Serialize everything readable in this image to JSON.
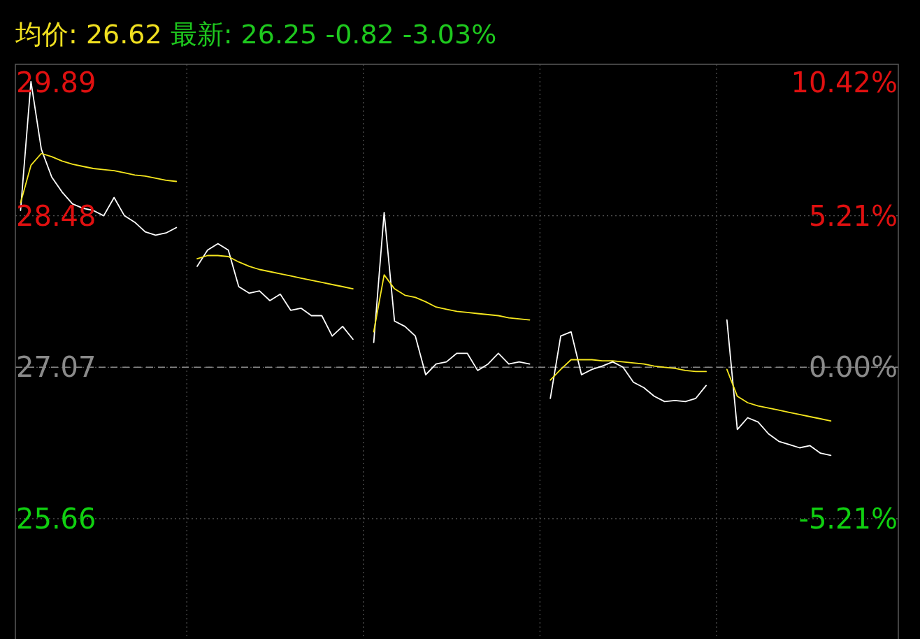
{
  "chart_data": {
    "type": "line",
    "title": "均价: 26.62",
    "subtitle": "最新: 26.25 -0.82 -3.03%",
    "categories": [
      null,
      null,
      null,
      null,
      null,
      null,
      null,
      null,
      null,
      null,
      null,
      null,
      null,
      null,
      null,
      null,
      null,
      null,
      null,
      null,
      null,
      null,
      null,
      null,
      null,
      null,
      null,
      null,
      null,
      null,
      null,
      null,
      null,
      null,
      null,
      null,
      null,
      null,
      null,
      null,
      null,
      null,
      null,
      null,
      null,
      null,
      null,
      null,
      null,
      null,
      null,
      null,
      null,
      null,
      null,
      null,
      null,
      null,
      null,
      null,
      null,
      null,
      null,
      null,
      null,
      null,
      null,
      null,
      null,
      null,
      null,
      null,
      null,
      null,
      null,
      null,
      null,
      null,
      null,
      null,
      null,
      null,
      null,
      null,
      null
    ],
    "ylim": [
      24.54,
      29.89
    ],
    "yticks": [
      29.89,
      28.48,
      27.07,
      25.66
    ],
    "y2lim": [
      -9.35,
      10.42
    ],
    "y2ticks": [
      {
        "value": 10.42,
        "label": "10.42%"
      },
      {
        "value": 5.21,
        "label": "5.21%"
      },
      {
        "value": 0,
        "label": "0.00%"
      },
      {
        "value": -5.21,
        "label": "-5.21%"
      }
    ],
    "grid": true,
    "ref_lines": [
      {
        "axis": "y",
        "value": 27.07,
        "color": "#8a8a8a",
        "line_style": "dashed"
      }
    ],
    "series": [
      {
        "color": "#ffffff",
        "values": [
          28.53,
          29.73,
          29.1,
          28.84,
          28.7,
          28.59,
          28.55,
          28.53,
          28.48,
          28.65,
          28.48,
          28.42,
          28.33,
          28.3,
          28.32,
          28.37,
          null,
          28.01,
          28.16,
          28.22,
          28.16,
          27.82,
          27.76,
          27.78,
          27.69,
          27.75,
          27.6,
          27.62,
          27.55,
          27.55,
          27.36,
          27.45,
          27.33,
          null,
          27.3,
          28.51,
          27.5,
          27.45,
          27.36,
          27.0,
          27.1,
          27.12,
          27.2,
          27.2,
          27.04,
          27.1,
          27.2,
          27.1,
          27.12,
          27.1,
          null,
          26.78,
          27.36,
          27.4,
          27.0,
          27.05,
          27.08,
          27.12,
          27.07,
          26.93,
          26.88,
          26.8,
          26.75,
          26.76,
          26.75,
          26.78,
          26.9,
          null,
          27.51,
          26.49,
          26.6,
          26.56,
          26.45,
          26.38,
          26.35,
          26.32,
          26.34,
          26.27,
          26.25,
          null,
          null,
          null,
          null,
          null,
          null
        ]
      },
      {
        "color": "#f5e61e",
        "values": [
          28.6,
          28.95,
          29.06,
          29.03,
          28.99,
          28.96,
          28.94,
          28.92,
          28.91,
          28.9,
          28.88,
          28.86,
          28.85,
          28.83,
          28.81,
          28.8,
          null,
          28.08,
          28.11,
          28.11,
          28.1,
          28.05,
          28.01,
          27.98,
          27.96,
          27.94,
          27.92,
          27.9,
          27.88,
          27.86,
          27.84,
          27.82,
          27.8,
          null,
          27.4,
          27.93,
          27.8,
          27.74,
          27.72,
          27.68,
          27.63,
          27.61,
          27.59,
          27.58,
          27.57,
          27.56,
          27.55,
          27.53,
          27.52,
          27.51,
          null,
          26.95,
          27.05,
          27.14,
          27.14,
          27.14,
          27.13,
          27.13,
          27.12,
          27.11,
          27.1,
          27.08,
          27.07,
          27.06,
          27.04,
          27.03,
          27.03,
          null,
          27.05,
          26.8,
          26.74,
          26.71,
          26.69,
          26.67,
          26.65,
          26.63,
          26.61,
          26.59,
          26.57,
          null,
          null,
          null,
          null,
          null,
          null
        ]
      }
    ]
  }
}
